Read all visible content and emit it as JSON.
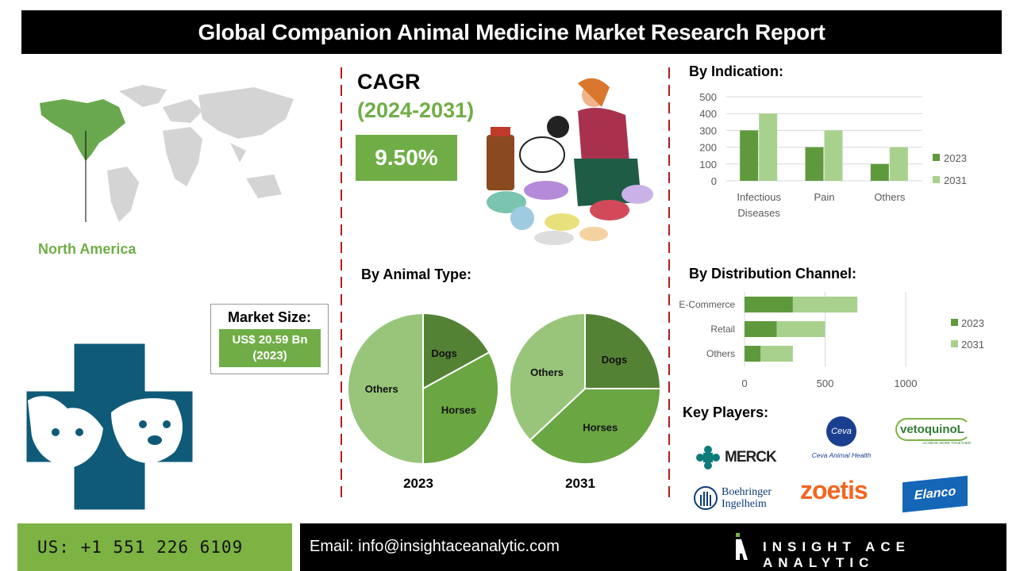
{
  "title": "Global Companion Animal Medicine Market Research Report",
  "region": {
    "label": "North America"
  },
  "market_size": {
    "label": "Market Size:",
    "value": "US$ 20.59 Bn",
    "year": "(2023)"
  },
  "cagr": {
    "label": "CAGR",
    "period": "(2024-2031)",
    "value": "9.50%"
  },
  "colors": {
    "green": "#70ad47",
    "dark_green": "#5e9a3c",
    "light_green": "#a9d18e",
    "divider": "#b31b1b",
    "logo_teal": "#0f5a78"
  },
  "chart_data": [
    {
      "type": "bar",
      "title": "By Indication:",
      "categories": [
        "Infectious Diseases",
        "Pain",
        "Others"
      ],
      "series": [
        {
          "name": "2023",
          "values": [
            300,
            200,
            100
          ]
        },
        {
          "name": "2031",
          "values": [
            400,
            300,
            200
          ]
        }
      ],
      "ylim": [
        0,
        500
      ],
      "yticks": [
        "0",
        "100",
        "200",
        "300",
        "400",
        "500"
      ],
      "grid": true,
      "legend": "right"
    },
    {
      "type": "bar",
      "orientation": "horizontal-stacked",
      "title": "By Distribution Channel:",
      "categories": [
        "E-Commerce",
        "Retail",
        "Others"
      ],
      "series": [
        {
          "name": "2023",
          "values": [
            300,
            200,
            100
          ]
        },
        {
          "name": "2031",
          "values": [
            400,
            300,
            200
          ]
        }
      ],
      "xlim": [
        0,
        1000
      ],
      "xticks": [
        "0",
        "500",
        "1000"
      ],
      "grid": true,
      "legend": "right"
    },
    {
      "type": "pie",
      "title": "By Animal Type:",
      "subtitle": "2023",
      "labels": [
        "Dogs",
        "Horses",
        "Others"
      ],
      "values": [
        17,
        33,
        50
      ]
    },
    {
      "type": "pie",
      "subtitle": "2031",
      "labels": [
        "Dogs",
        "Horses",
        "Others"
      ],
      "values": [
        25,
        38,
        37
      ]
    }
  ],
  "key_players": {
    "label": "Key Players:",
    "companies": [
      "MERCK",
      "Ceva Animal Health",
      "Vetoquinol",
      "Boehringer Ingelheim",
      "zoetis",
      "Elanco"
    ],
    "ceva_mark": "Ceva",
    "vetoquinol_mark": "vetoquinoL",
    "vetoquinol_tagline": "ACHIEVE MORE TOGETHER",
    "boehringer_line1": "Boehringer",
    "boehringer_line2": "Ingelheim"
  },
  "footer": {
    "phone": "US: +1 551 226 6109",
    "email": "Email: info@insightaceanalytic.com",
    "brand": "INSIGHT ACE ANALYTIC"
  }
}
